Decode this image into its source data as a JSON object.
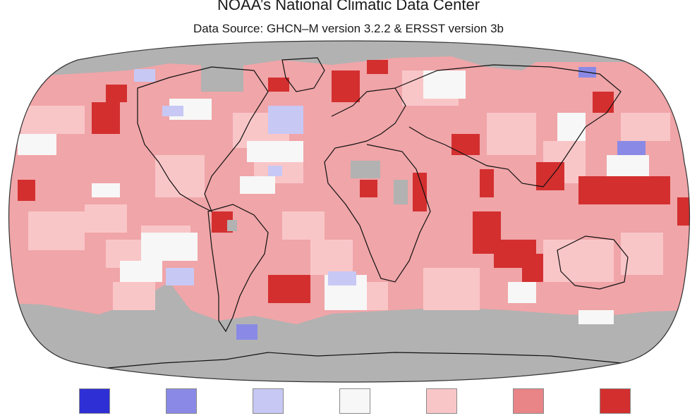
{
  "header": {
    "title": "NOAA’s National Climatic Data Center",
    "subtitle": "Data Source: GHCN–M version 3.2.2 & ERSST version 3b"
  },
  "map": {
    "projection": "Robinson",
    "ocean_color": "#f0a5a8",
    "no_data_color": "#b2b2b2",
    "coastline_color": "#111111",
    "grid_boxes": [
      {
        "level": "warm-strong"
      },
      {
        "level": "warm"
      },
      {
        "level": "near-normal"
      },
      {
        "level": "cool"
      }
    ]
  },
  "legend": {
    "swatches": [
      {
        "color": "#2f2fd6"
      },
      {
        "color": "#8a8ae6"
      },
      {
        "color": "#c8c8f5"
      },
      {
        "color": "#f7f7f7"
      },
      {
        "color": "#f9c6c8"
      },
      {
        "color": "#e98487"
      },
      {
        "color": "#d32f2f"
      }
    ]
  }
}
